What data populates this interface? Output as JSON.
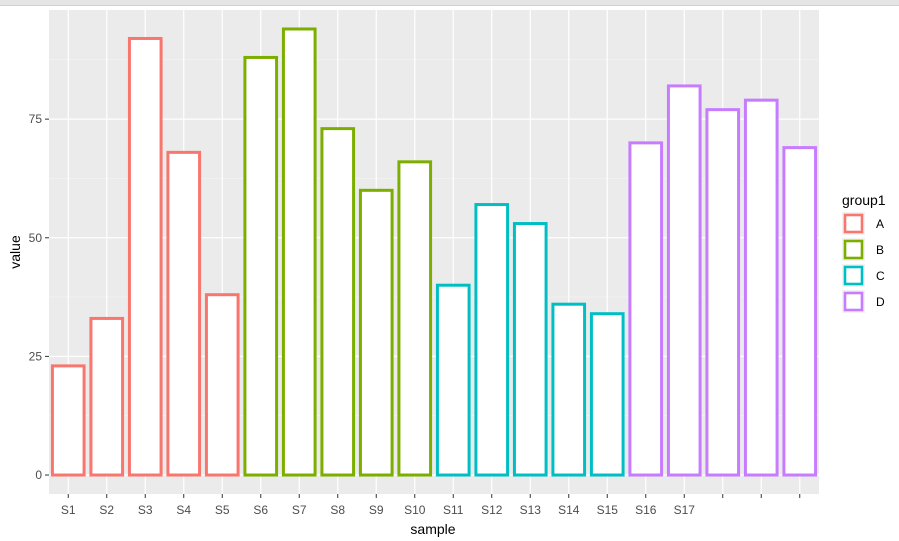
{
  "chart_data": {
    "type": "bar",
    "style": "outlined bars, fill white, colored border by group",
    "xlabel": "sample",
    "ylabel": "value",
    "ylim": [
      -4,
      98
    ],
    "yticks": [
      0,
      25,
      50,
      75
    ],
    "grid": true,
    "legend": {
      "title": "group1",
      "placement": "right",
      "entries": [
        "A",
        "B",
        "C",
        "D"
      ]
    },
    "group_colors": {
      "A": "#F8766D",
      "B": "#7CAE00",
      "C": "#00BFC4",
      "D": "#C77CFF"
    },
    "x_tick_labels": [
      "S1",
      "S2",
      "S3",
      "S4",
      "S5",
      "S6",
      "S7",
      "S8",
      "S9",
      "S10",
      "S11",
      "S12",
      "S13",
      "S14",
      "S15",
      "S16",
      "S17"
    ],
    "bars": [
      {
        "sample": "S1",
        "value": 23,
        "group": "A"
      },
      {
        "sample": "S2",
        "value": 33,
        "group": "A"
      },
      {
        "sample": "S3",
        "value": 92,
        "group": "A"
      },
      {
        "sample": "S4",
        "value": 68,
        "group": "A"
      },
      {
        "sample": "S5",
        "value": 38,
        "group": "A"
      },
      {
        "sample": "S6",
        "value": 88,
        "group": "B"
      },
      {
        "sample": "S7",
        "value": 94,
        "group": "B"
      },
      {
        "sample": "S8",
        "value": 73,
        "group": "B"
      },
      {
        "sample": "S9",
        "value": 60,
        "group": "B"
      },
      {
        "sample": "S10",
        "value": 66,
        "group": "B"
      },
      {
        "sample": "S11",
        "value": 40,
        "group": "C"
      },
      {
        "sample": "S12",
        "value": 57,
        "group": "C"
      },
      {
        "sample": "S13",
        "value": 53,
        "group": "C"
      },
      {
        "sample": "S14",
        "value": 36,
        "group": "C"
      },
      {
        "sample": "S15",
        "value": 34,
        "group": "C"
      },
      {
        "sample": "S16",
        "value": 70,
        "group": "D"
      },
      {
        "sample": "S17",
        "value": 82,
        "group": "D"
      },
      {
        "sample": "",
        "value": 77,
        "group": "D"
      },
      {
        "sample": "",
        "value": 79,
        "group": "D"
      },
      {
        "sample": "",
        "value": 69,
        "group": "D"
      }
    ]
  }
}
